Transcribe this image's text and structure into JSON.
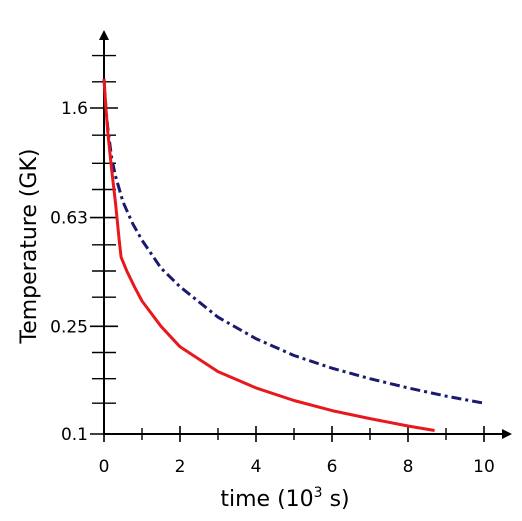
{
  "chart_data": {
    "type": "line",
    "xlabel": {
      "base": "time (10",
      "exp": "3",
      "tail": " s)"
    },
    "ylabel": "Temperature (GK)",
    "xlim": [
      0,
      10.5
    ],
    "ylim": [
      0.1,
      3.2
    ],
    "yscale": "log",
    "xticks": [
      {
        "value": 0,
        "label": "0"
      },
      {
        "value": 2,
        "label": "2"
      },
      {
        "value": 4,
        "label": "4"
      },
      {
        "value": 6,
        "label": "6"
      },
      {
        "value": 8,
        "label": "8"
      },
      {
        "value": 10,
        "label": "10"
      }
    ],
    "xminor": [
      1,
      3,
      5,
      7,
      9
    ],
    "yticks": [
      {
        "value": 0.1,
        "label": "0.1"
      },
      {
        "value": 0.25,
        "label": "0.25"
      },
      {
        "value": 0.63,
        "label": "0.63"
      },
      {
        "value": 1.6,
        "label": "1.6"
      }
    ],
    "yminor": [
      0.13,
      0.16,
      0.2,
      0.32,
      0.4,
      0.5,
      0.8,
      1.0,
      1.27,
      2.0,
      2.5
    ],
    "grid": false,
    "legend": "none",
    "series": [
      {
        "color": "#1a1a6e",
        "style": "dashdot",
        "x": [
          0,
          0.05,
          0.1,
          0.2,
          0.3,
          0.5,
          0.75,
          1.0,
          1.5,
          2.0,
          3.0,
          4.0,
          5.0,
          6.0,
          7.0,
          8.0,
          9.0,
          10.0
        ],
        "y": [
          2.05,
          1.6,
          1.35,
          1.05,
          0.9,
          0.72,
          0.6,
          0.52,
          0.41,
          0.35,
          0.27,
          0.225,
          0.195,
          0.175,
          0.16,
          0.148,
          0.138,
          0.13
        ]
      },
      {
        "color": "#e8191e",
        "style": "solid",
        "x": [
          0,
          0.05,
          0.1,
          0.2,
          0.3,
          0.4,
          0.45,
          0.6,
          0.8,
          1.0,
          1.5,
          2.0,
          3.0,
          4.0,
          5.0,
          6.0,
          7.0,
          8.0,
          8.7
        ],
        "y": [
          2.05,
          1.6,
          1.3,
          0.95,
          0.72,
          0.52,
          0.45,
          0.4,
          0.35,
          0.31,
          0.25,
          0.21,
          0.17,
          0.148,
          0.133,
          0.122,
          0.114,
          0.107,
          0.103
        ]
      }
    ]
  }
}
